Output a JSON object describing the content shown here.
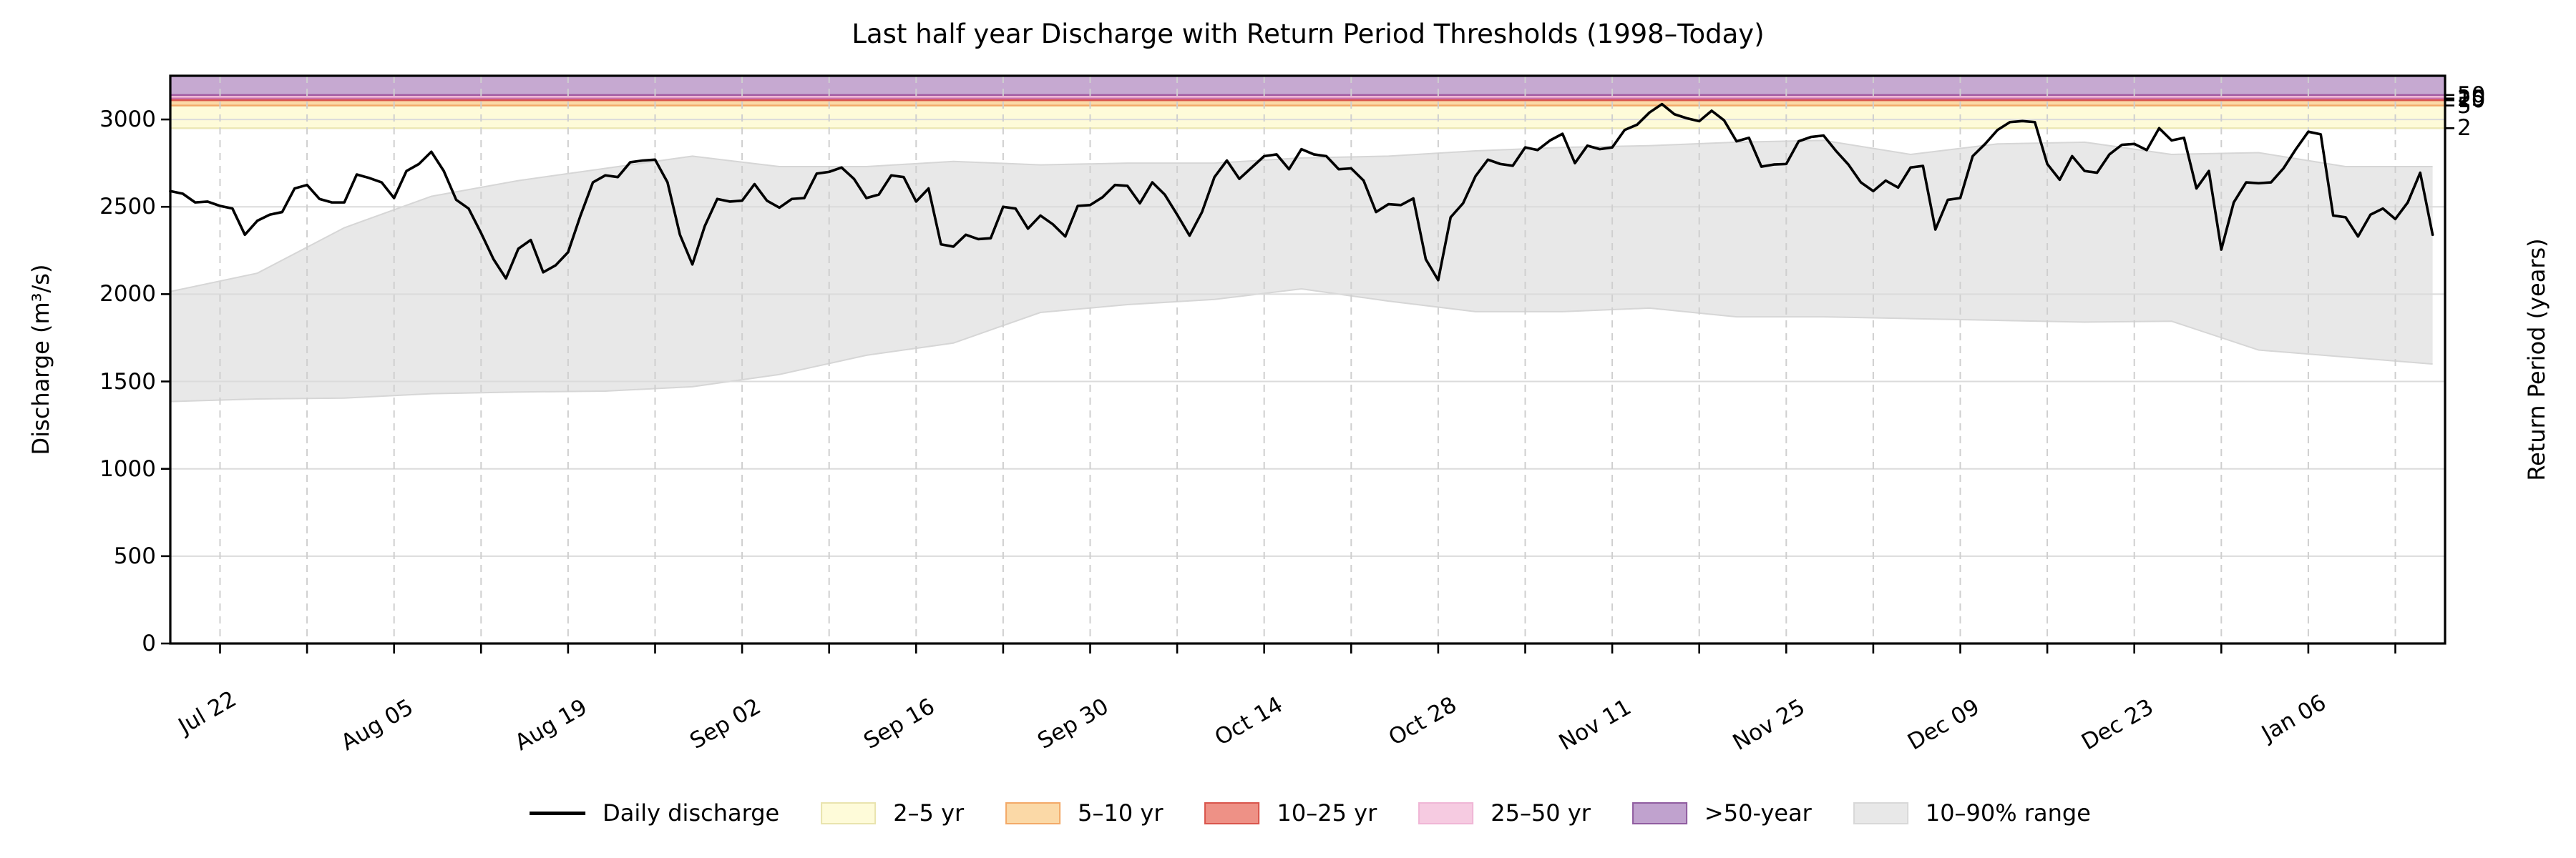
{
  "chart": {
    "title": "Last half year Discharge with Return Period Thresholds (1998–Today)",
    "y_axis": {
      "label": "Discharge (m³/s)",
      "ticks": [
        0,
        500,
        1000,
        1500,
        2000,
        2500,
        3000
      ]
    },
    "right_axis": {
      "label": "Return Period (years)",
      "ticks": [
        {
          "value": 2950,
          "label": "2"
        },
        {
          "value": 3080,
          "label": "5"
        },
        {
          "value": 3110,
          "label": "10"
        },
        {
          "value": 3120,
          "label": "25"
        },
        {
          "value": 3140,
          "label": "50"
        }
      ]
    },
    "x_axis": {
      "start_date": "Jul 18",
      "end_date": "Jan 16",
      "days_span": 183,
      "minor_tick_step_days": 7,
      "first_tick_day": 4,
      "major_ticks": [
        {
          "day": 4,
          "label": "Jul 22"
        },
        {
          "day": 18,
          "label": "Aug 05"
        },
        {
          "day": 32,
          "label": "Aug 19"
        },
        {
          "day": 46,
          "label": "Sep 02"
        },
        {
          "day": 60,
          "label": "Sep 16"
        },
        {
          "day": 74,
          "label": "Sep 30"
        },
        {
          "day": 88,
          "label": "Oct 14"
        },
        {
          "day": 102,
          "label": "Oct 28"
        },
        {
          "day": 116,
          "label": "Nov 11"
        },
        {
          "day": 130,
          "label": "Nov 25"
        },
        {
          "day": 144,
          "label": "Dec 09"
        },
        {
          "day": 158,
          "label": "Dec 23"
        },
        {
          "day": 172,
          "label": "Jan 06"
        }
      ]
    }
  },
  "chart_data": {
    "type": "line",
    "title": "Last half year Discharge with Return Period Thresholds (1998–Today)",
    "xlabel": "",
    "ylabel": "Discharge (m³/s)",
    "ylim": [
      0,
      3250
    ],
    "grid": true,
    "legend_position": "bottom-center",
    "series": [
      {
        "name": "Daily discharge",
        "color": "#000000",
        "start_date": "Jul 18",
        "step_days": 1,
        "values": [
          2590,
          2575,
          2525,
          2530,
          2505,
          2490,
          2340,
          2420,
          2455,
          2470,
          2605,
          2625,
          2545,
          2525,
          2525,
          2685,
          2665,
          2640,
          2550,
          2705,
          2745,
          2815,
          2705,
          2540,
          2490,
          2350,
          2200,
          2090,
          2260,
          2310,
          2125,
          2165,
          2240,
          2450,
          2640,
          2680,
          2670,
          2755,
          2765,
          2770,
          2640,
          2340,
          2170,
          2390,
          2545,
          2530,
          2535,
          2630,
          2535,
          2495,
          2545,
          2550,
          2690,
          2700,
          2725,
          2660,
          2550,
          2570,
          2680,
          2670,
          2530,
          2605,
          2285,
          2272,
          2340,
          2315,
          2320,
          2500,
          2490,
          2375,
          2450,
          2400,
          2330,
          2505,
          2510,
          2555,
          2625,
          2620,
          2520,
          2640,
          2570,
          2455,
          2335,
          2470,
          2670,
          2765,
          2660,
          2725,
          2790,
          2800,
          2715,
          2830,
          2800,
          2790,
          2715,
          2720,
          2650,
          2470,
          2515,
          2510,
          2548,
          2200,
          2080,
          2440,
          2520,
          2675,
          2770,
          2745,
          2735,
          2840,
          2825,
          2880,
          2918,
          2750,
          2850,
          2830,
          2840,
          2940,
          2970,
          3040,
          3088,
          3030,
          3007,
          2990,
          3050,
          2995,
          2875,
          2895,
          2730,
          2742,
          2745,
          2875,
          2900,
          2908,
          2820,
          2742,
          2640,
          2590,
          2650,
          2610,
          2725,
          2734,
          2370,
          2540,
          2550,
          2790,
          2860,
          2940,
          2985,
          2991,
          2985,
          2745,
          2655,
          2790,
          2705,
          2695,
          2800,
          2855,
          2860,
          2825,
          2950,
          2880,
          2895,
          2605,
          2705,
          2255,
          2525,
          2640,
          2635,
          2640,
          2720,
          2830,
          2930,
          2915,
          2450,
          2440,
          2330,
          2455,
          2490,
          2430,
          2525,
          2695,
          2340
        ]
      }
    ],
    "band_10_90": {
      "name": "10–90% range",
      "fill": "#e8e8e8",
      "edge": "#d6d6d6",
      "start_date": "Jul 18",
      "step_days": 7,
      "lo": [
        1385,
        1400,
        1405,
        1430,
        1440,
        1445,
        1470,
        1540,
        1650,
        1720,
        1895,
        1940,
        1970,
        2030,
        1960,
        1900,
        1900,
        1920,
        1870,
        1870,
        1860,
        1850,
        1840,
        1845,
        1680,
        1640,
        1600
      ],
      "hi": [
        2015,
        2120,
        2380,
        2560,
        2650,
        2720,
        2790,
        2730,
        2730,
        2760,
        2740,
        2750,
        2750,
        2780,
        2790,
        2820,
        2840,
        2850,
        2870,
        2880,
        2800,
        2860,
        2870,
        2800,
        2810,
        2730,
        2730
      ]
    },
    "thresholds": [
      {
        "label": "2–5 yr",
        "return_period_years": 2,
        "from": 2950,
        "to": 3080,
        "fill": "#fefbd9",
        "edge": "#ece7b4"
      },
      {
        "label": "5–10 yr",
        "return_period_years": 5,
        "from": 3080,
        "to": 3110,
        "fill": "#fbd9a7",
        "edge": "#f3a968"
      },
      {
        "label": "10–25 yr",
        "return_period_years": 10,
        "from": 3110,
        "to": 3120,
        "fill": "#ee9186",
        "edge": "#d9554c"
      },
      {
        "label": "25–50 yr",
        "return_period_years": 25,
        "from": 3120,
        "to": 3140,
        "fill": "#f4c3dc",
        "edge": "#cb6fa9"
      },
      {
        "label": ">50-year",
        "return_period_years": 50,
        "from": 3140,
        "to": 3250,
        "fill": "#c6a9d1",
        "edge": "#a25ba2"
      }
    ],
    "colors": {
      "line": "#000000",
      "grid_h": "#dbdbdb",
      "grid_v": "#cfcfcf",
      "spine": "#000000",
      "background": "#ffffff"
    }
  },
  "legend": {
    "items": [
      {
        "label": "Daily discharge",
        "kind": "line",
        "fill": "#000000",
        "edge": "#000000"
      },
      {
        "label": "2–5 yr",
        "kind": "patch",
        "fill": "#fefbd9",
        "edge": "#e9e4ae"
      },
      {
        "label": "5–10 yr",
        "kind": "patch",
        "fill": "#fbd9a7",
        "edge": "#f3a968"
      },
      {
        "label": "10–25 yr",
        "kind": "patch",
        "fill": "#ee9186",
        "edge": "#d9554c"
      },
      {
        "label": "25–50 yr",
        "kind": "patch",
        "fill": "#f6cbe1",
        "edge": "#f0b6d6"
      },
      {
        "label": ">50-year",
        "kind": "patch",
        "fill": "#c0a2ce",
        "edge": "#905da0"
      },
      {
        "label": "10–90% range",
        "kind": "patch",
        "fill": "#e8e8e8",
        "edge": "#d8d8d8"
      }
    ]
  }
}
